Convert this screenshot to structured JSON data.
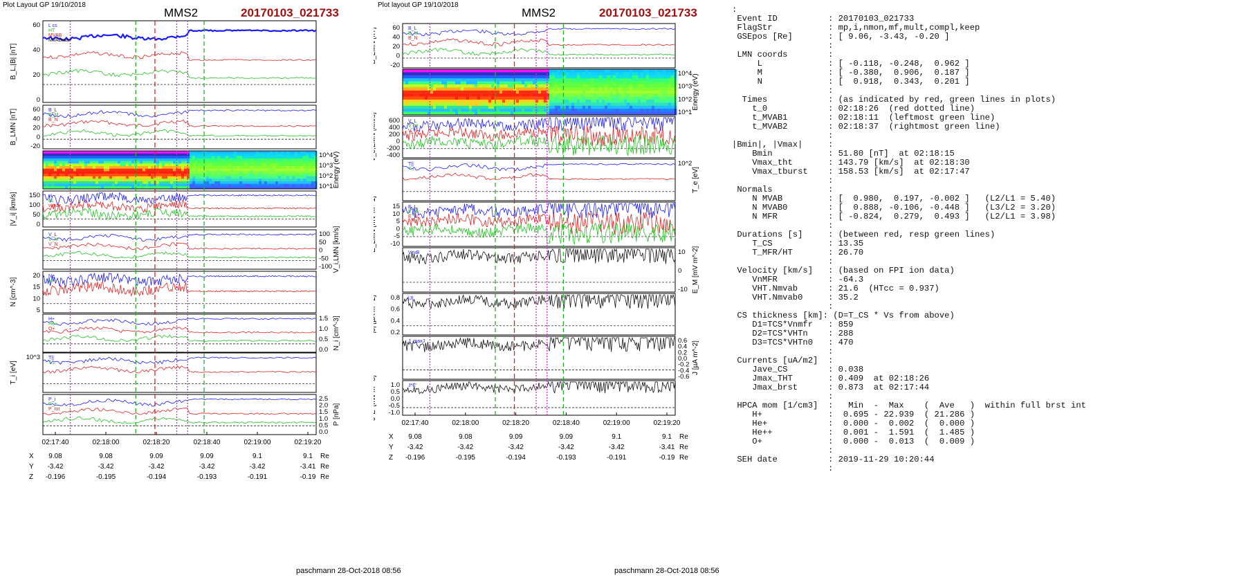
{
  "left": {
    "header": "Plot Layout GP 19/10/2018",
    "sc": "MMS2",
    "event": "20170103_021733",
    "footer": "paschmann 28-Oct-2018 08:56",
    "time_ticks": [
      "02:17:40",
      "02:18:00",
      "02:18:20",
      "02:18:40",
      "02:19:00",
      "02:19:20"
    ],
    "panels": [
      {
        "ylabel": "B_L,|B| [nT]",
        "ticks": [
          "60",
          "40",
          "20",
          "0"
        ],
        "legend": [
          "L cs",
          "HT",
          "MVAB",
          "MVABmax",
          "Bl",
          "Bl_brst",
          "Bt"
        ]
      },
      {
        "ylabel": "B_LMN [nT]",
        "ticks": [
          "60",
          "40",
          "20",
          "0",
          "-20"
        ],
        "legend": [
          "B_L",
          "B_M",
          "B_N"
        ]
      },
      {
        "ylabel": "Energy (eV)",
        "ticks": [
          "10^4",
          "10^3",
          "10^2",
          "10^1"
        ],
        "legend": []
      },
      {
        "ylabel": "|V_i| [km/s]",
        "ticks": [
          "150",
          "100",
          "50",
          "0"
        ],
        "legend": [
          "vi",
          "cs",
          "vimax"
        ]
      },
      {
        "ylabel": "V_i,LMN [km/s]",
        "ticks": [
          "100",
          "50",
          "0",
          "-50",
          "-100"
        ],
        "legend": [
          "V_L",
          "V_M",
          "V_N"
        ]
      },
      {
        "ylabel": "N [cm^-3]",
        "ticks": [
          "20",
          "15",
          "10",
          "5"
        ],
        "legend": [
          "Ne",
          "Ni"
        ]
      },
      {
        "ylabel": "N_i [cm^-3]",
        "ticks": [
          "1.5",
          "1.0",
          "0.5",
          "0.0"
        ],
        "legend": [
          "H+",
          "He+",
          "O+"
        ]
      },
      {
        "ylabel": "T_i [eV]",
        "ticks": [
          "10^3"
        ],
        "legend": [
          "T||",
          "T⊥"
        ]
      },
      {
        "ylabel": "P [nPa]",
        "ticks": [
          "2.5",
          "2.0",
          "1.5",
          "1.0",
          "0.5",
          "0.0"
        ],
        "legend": [
          "P_i",
          "P_e",
          "P_tot"
        ]
      }
    ],
    "pos": {
      "rows": [
        {
          "label": "X",
          "values": [
            "9.08",
            "9.08",
            "9.09",
            "9.09",
            "9.1",
            "9.1"
          ],
          "unit": "Re"
        },
        {
          "label": "Y",
          "values": [
            "-3.42",
            "-3.42",
            "-3.42",
            "-3.42",
            "-3.42",
            "-3.41"
          ],
          "unit": "Re"
        },
        {
          "label": "Z",
          "values": [
            "-0.196",
            "-0.195",
            "-0.194",
            "-0.193",
            "-0.191",
            "-0.19"
          ],
          "unit": "Re"
        }
      ]
    }
  },
  "middle": {
    "header": "Plot layout GP 19/10/2018",
    "sc": "MMS2",
    "event": "20170103_021733",
    "footer": "paschmann 28-Oct-2018 08:56",
    "time_ticks": [
      "02:17:40",
      "02:18:00",
      "02:18:20",
      "02:18:40",
      "02:19:00",
      "02:19:20"
    ],
    "panels": [
      {
        "ylabel": "B_LMN [nT]",
        "ticks": [
          "60",
          "40",
          "20",
          "0",
          "-20"
        ],
        "legend": [
          "B_L",
          "B_M",
          "B_N"
        ]
      },
      {
        "ylabel": "Energy (eV)",
        "ticks": [
          "10^4",
          "10^3",
          "10^2",
          "10^1"
        ],
        "legend": []
      },
      {
        "ylabel": "V_e,LMN [km/s]",
        "ticks": [
          "600",
          "400",
          "200",
          "0",
          "-200",
          "-400"
        ],
        "legend": [
          "V_L",
          "V_M",
          "V_N"
        ]
      },
      {
        "ylabel": "T_e [eV]",
        "ticks": [
          "10^2"
        ],
        "legend": [
          "T||",
          "T⊥"
        ]
      },
      {
        "ylabel": "E_LMN [mV m^-1]",
        "ticks": [
          "15",
          "10",
          "5",
          "0",
          "-5",
          "-10"
        ],
        "legend": [
          "E_L",
          "E_M",
          "E_N"
        ]
      },
      {
        "ylabel": "E_M [mV m^-2]",
        "ticks": [
          "10",
          "0",
          "-10"
        ],
        "legend": [
          "VexB"
        ]
      },
      {
        "ylabel": "|J| [µA m^-2]",
        "ticks": [
          "0.8",
          "0.6",
          "0.4",
          "0.2"
        ],
        "legend": [
          "|J|"
        ]
      },
      {
        "ylabel": "J [µA m^-2]",
        "ticks": [
          "0.6",
          "0.4",
          "0.2",
          "0.0",
          "-0.2",
          "-0.4",
          "-0.6"
        ],
        "legend": [
          "J_maxJ"
        ]
      },
      {
        "ylabel": "J*E' [nW m^-3]",
        "ticks": [
          "1.0",
          "0.5",
          "0.0",
          "-0.5",
          "-1.0"
        ],
        "legend": [
          "J*E'"
        ]
      }
    ],
    "pos": {
      "rows": [
        {
          "label": "X",
          "values": [
            "9.08",
            "9.08",
            "9.09",
            "9.09",
            "9.1",
            "9.1"
          ],
          "unit": "Re"
        },
        {
          "label": "Y",
          "values": [
            "-3.42",
            "-3.42",
            "-3.42",
            "-3.42",
            "-3.42",
            "-3.41"
          ],
          "unit": "Re"
        },
        {
          "label": "Z",
          "values": [
            "-0.196",
            "-0.195",
            "-0.194",
            "-0.193",
            "-0.191",
            "-0.19"
          ],
          "unit": "Re"
        }
      ]
    }
  },
  "info_lines": [
    ":",
    " Event ID          : 20170103_021733",
    " FlagStr           : mp,i,nmon,mf,mult,compl,keep",
    " GSEpos [Re]       : [ 9.06, -3.43, -0.20 ]",
    "                   :",
    " LMN coords        :",
    "     L             : [ -0.118, -0.248,  0.962 ]",
    "     M             : [ -0.380,  0.906,  0.187 ]",
    "     N             : [  0.918,  0.343,  0.201 ]",
    "                   :",
    "  Times            : (as indicated by red, green lines in plots)",
    "    t_0            : 02:18:26  (red dotted line)",
    "    t_MVAB1        : 02:18:11  (leftmost green line)",
    "    t_MVAB2        : 02:18:37  (rightmost green line)",
    "                   :",
    "|Bmin|, |Vmax|     :",
    "    Bmin           : 51.80 [nT]  at 02:18:15",
    "    Vmax_tht       : 143.79 [km/s]  at 02:18:30",
    "    Vmax_tburst    : 158.53 [km/s]  at 02:17:47",
    "                   :",
    " Normals           :",
    "    N MVAB         : [  0.980,  0.197, -0.002 ]   (L2/L1 = 5.40)",
    "    N MVAB0        : [  0.888, -0.106, -0.448 ]   (L3/L2 = 3.20)",
    "    N MFR          : [ -0.824,  0.279,  0.493 ]   (L2/L1 = 3.98)",
    "                   :",
    " Durations [s]     : (between red, resp green lines)",
    "    T_CS           : 13.35",
    "    T_MFR/HT       : 26.70",
    "                   :",
    " Velocity [km/s]   : (based on FPI ion data)",
    "    VnMFR          : -64.3",
    "    VHT.Nmvab      : 21.6  (HTcc = 0.937)",
    "    VHT.Nmvab0     : 35.2",
    "                   :",
    " CS thickness [km]: (D=T_CS * Vs from above)",
    "    D1=TCS*Vnmfr   : 859",
    "    D2=TCS*VHTn    : 288",
    "    D3=TCS*VHTn0   : 470",
    "                   :",
    " Currents [uA/m2]  :",
    "    Jave_CS        : 0.038",
    "    Jmax_THT       : 0.409  at 02:18:26",
    "    Jmax_brst      : 0.873  at 02:17:44",
    "                   :",
    " HPCA mom [1/cm3]  :   Min  -  Max    (  Ave   )  within full brst int",
    "    H+             :  0.695 - 22.939  ( 21.286 )",
    "    He+            :  0.000 -  0.002  (  0.000 )",
    "    He++           :  0.001 -  1.591  (  1.485 )",
    "    O+             :  0.000 -  0.013  (  0.009 )",
    "                   :",
    " SEH date          : 2019-11-29 10:20:44",
    "                   :"
  ],
  "colors": {
    "event": "#a01010",
    "blue": "#1a1aff",
    "red": "#e02020",
    "green": "#22c022",
    "black": "#111111",
    "magenta": "#e020e0"
  },
  "chart_data": [
    {
      "type": "line",
      "title": "MMS2 20170103_021733",
      "x": [
        "02:17:40",
        "02:18:00",
        "02:18:20",
        "02:18:40",
        "02:19:00",
        "02:19:20"
      ],
      "series": [
        {
          "name": "Bl",
          "values": [
            55,
            48,
            46,
            62,
            60,
            59
          ]
        },
        {
          "name": "B_L",
          "values": [
            50,
            48,
            42,
            58,
            57,
            56
          ]
        }
      ],
      "ylabel": "B_L,|B| [nT]",
      "ylim": [
        0,
        70
      ]
    },
    {
      "type": "line",
      "title": "MMS2 20170103_021733",
      "x": [
        "02:17:40",
        "02:18:00",
        "02:18:20",
        "02:18:40",
        "02:19:00",
        "02:19:20"
      ],
      "series": [
        {
          "name": "|J|",
          "values": [
            0.3,
            0.35,
            0.3,
            0.02,
            0.02,
            0.02
          ]
        }
      ],
      "ylabel": "|J| [µA m^-2]",
      "ylim": [
        0,
        0.9
      ]
    }
  ]
}
